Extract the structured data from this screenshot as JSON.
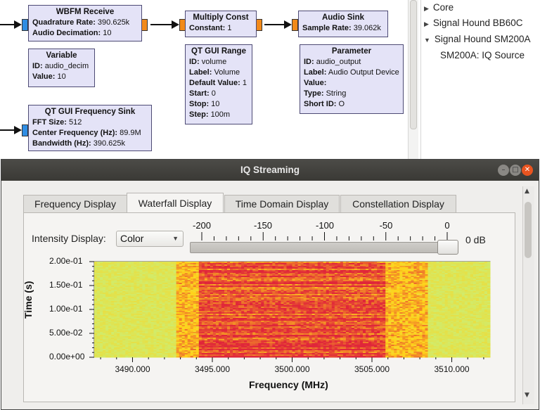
{
  "flowgraph": {
    "wbfm": {
      "title": "WBFM Receive",
      "rows": [
        {
          "k": "Quadrature Rate:",
          "v": "390.625k"
        },
        {
          "k": "Audio Decimation:",
          "v": "10"
        }
      ]
    },
    "mult": {
      "title": "Multiply Const",
      "rows": [
        {
          "k": "Constant:",
          "v": "1"
        }
      ]
    },
    "audiosink": {
      "title": "Audio Sink",
      "rows": [
        {
          "k": "Sample Rate:",
          "v": "39.062k"
        }
      ]
    },
    "variable": {
      "title": "Variable",
      "rows": [
        {
          "k": "ID:",
          "v": "audio_decim"
        },
        {
          "k": "Value:",
          "v": "10"
        }
      ]
    },
    "range": {
      "title": "QT GUI Range",
      "rows": [
        {
          "k": "ID:",
          "v": "volume"
        },
        {
          "k": "Label:",
          "v": "Volume"
        },
        {
          "k": "Default Value:",
          "v": "1"
        },
        {
          "k": "Start:",
          "v": "0"
        },
        {
          "k": "Stop:",
          "v": "10"
        },
        {
          "k": "Step:",
          "v": "100m"
        }
      ]
    },
    "parameter": {
      "title": "Parameter",
      "rows": [
        {
          "k": "ID:",
          "v": "audio_output"
        },
        {
          "k": "Label:",
          "v": "Audio Output Device"
        },
        {
          "k": "Value:",
          "v": ""
        },
        {
          "k": "Type:",
          "v": "String"
        },
        {
          "k": "Short ID:",
          "v": "O"
        }
      ]
    },
    "freqsink": {
      "title": "QT GUI Frequency Sink",
      "rows": [
        {
          "k": "FFT Size:",
          "v": "512"
        },
        {
          "k": "Center Frequency (Hz):",
          "v": "89.9M"
        },
        {
          "k": "Bandwidth (Hz):",
          "v": "390.625k"
        }
      ]
    }
  },
  "tree": [
    {
      "label": "Core",
      "expanded": false
    },
    {
      "label": "Signal Hound BB60C",
      "expanded": false
    },
    {
      "label": "Signal Hound SM200A",
      "expanded": true
    },
    {
      "label": "SM200A: IQ Source",
      "child": true
    }
  ],
  "window": {
    "title": "IQ Streaming",
    "tabs": [
      "Frequency Display",
      "Waterfall Display",
      "Time Domain Display",
      "Constellation Display"
    ],
    "active_tab": 1,
    "intensity_label": "Intensity Display:",
    "intensity_value": "Color",
    "slider_value_label": "0 dB",
    "slider_scale": [
      "-200",
      "-150",
      "-100",
      "-50",
      "0"
    ],
    "slider_value_db": 0,
    "colors": {
      "low": "#c8f07a",
      "mid": "#ffd21a",
      "high": "#e0263a"
    }
  },
  "chart_data": {
    "type": "heatmap",
    "xlabel": "Frequency (MHz)",
    "ylabel": "Time (s)",
    "xticks": [
      "3490.000",
      "3495.000",
      "3500.000",
      "3505.000",
      "3510.000"
    ],
    "yticks": [
      "0.00e+00",
      "5.00e-02",
      "1.00e-01",
      "1.50e-01",
      "2.00e-01"
    ],
    "xlim": [
      3487.6,
      3512.4
    ],
    "ylim": [
      0,
      0.2
    ]
  }
}
